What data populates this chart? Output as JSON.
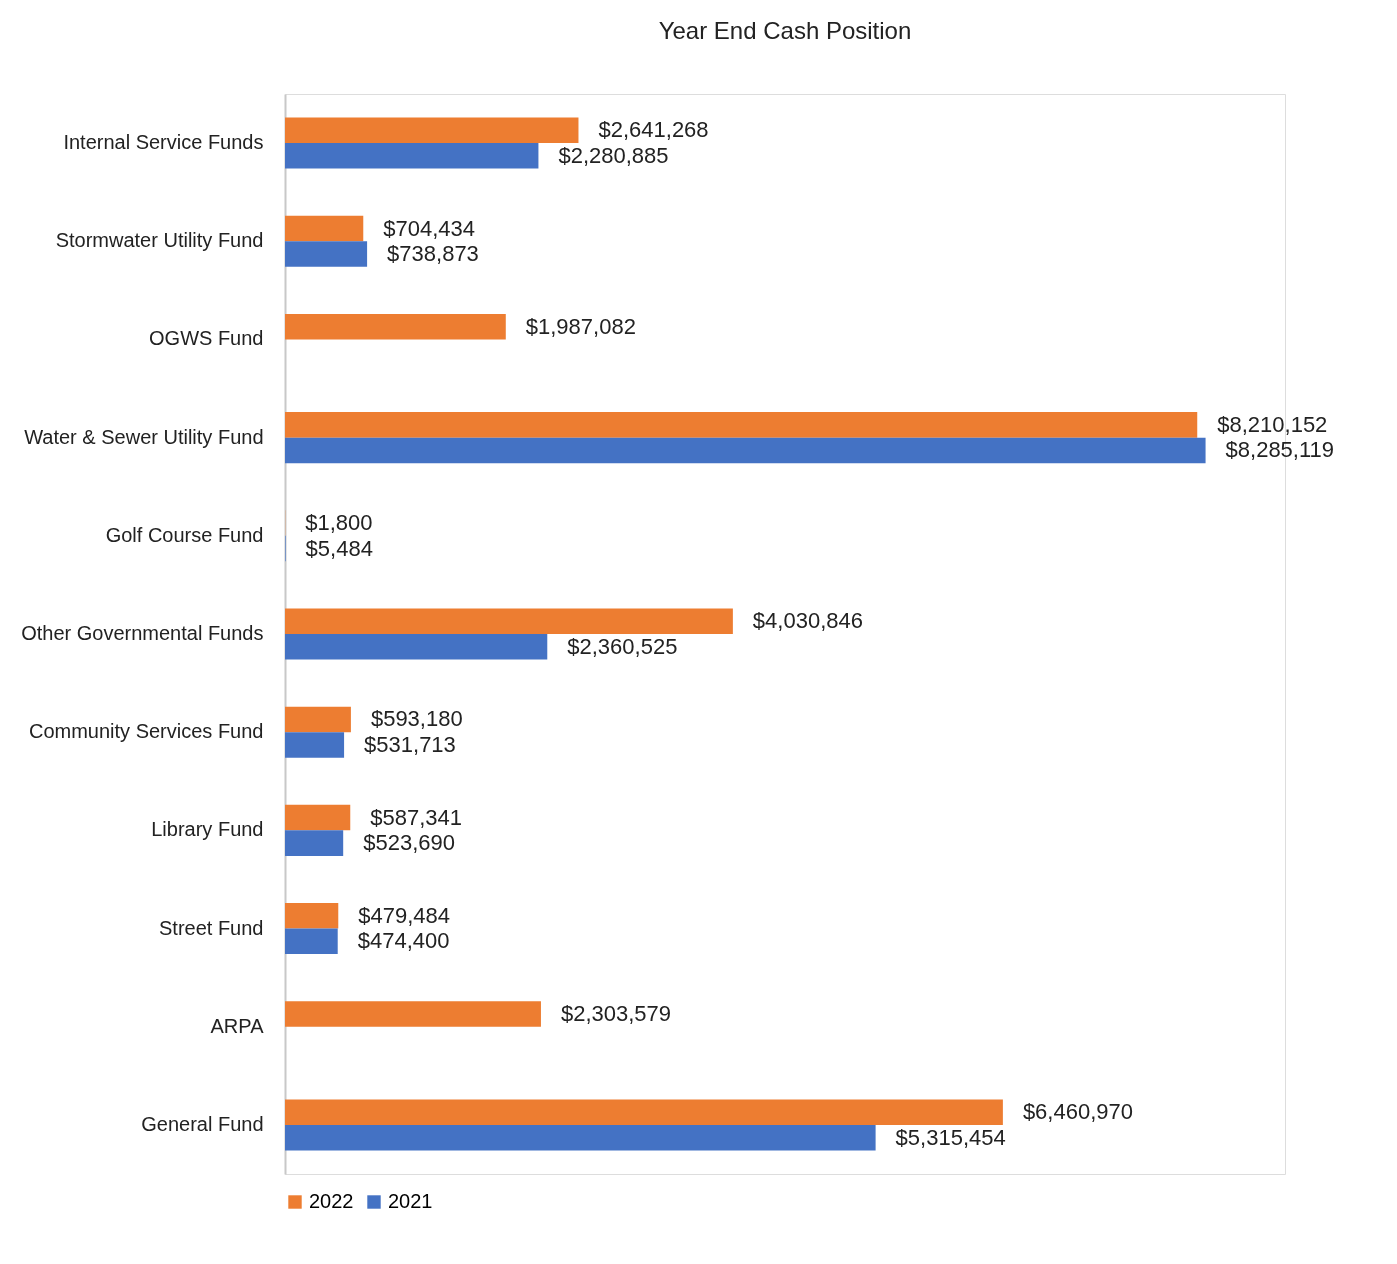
{
  "chart_data": {
    "type": "bar",
    "orientation": "horizontal",
    "title": "Year End Cash Position",
    "categories": [
      "Internal Service Funds",
      "Stormwater Utility Fund",
      "OGWS Fund",
      "Water & Sewer Utility Fund",
      "Golf Course Fund",
      "Other Governmental Funds",
      "Community Services Fund",
      "Library Fund",
      "Street Fund",
      "ARPA",
      "General Fund"
    ],
    "series": [
      {
        "name": "2022",
        "color": "#ed7d31",
        "values": [
          2641268,
          704434,
          1987082,
          8210152,
          1800,
          4030846,
          593180,
          587341,
          479484,
          2303579,
          6460970
        ],
        "value_labels": [
          "$2,641,268",
          "$704,434",
          "$1,987,082",
          "$8,210,152",
          "$1,800",
          "$4,030,846",
          "$593,180",
          "$587,341",
          "$479,484",
          "$2,303,579",
          "$6,460,970"
        ]
      },
      {
        "name": "2021",
        "color": "#4472c4",
        "values": [
          2280885,
          738873,
          null,
          8285119,
          5484,
          2360525,
          531713,
          523690,
          474400,
          null,
          5315454
        ],
        "value_labels": [
          "$2,280,885",
          "$738,873",
          null,
          "$8,285,119",
          "$5,484",
          "$2,360,525",
          "$531,713",
          "$523,690",
          "$474,400",
          null,
          "$5,315,454"
        ]
      }
    ],
    "legend": "bottom",
    "grid": false,
    "tick_labels": "y"
  }
}
